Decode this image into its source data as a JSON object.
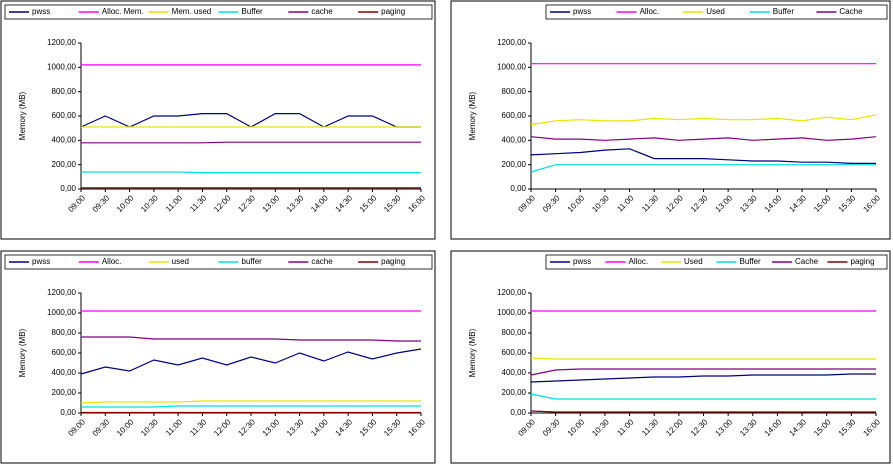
{
  "chart_data": [
    {
      "type": "line",
      "ylabel": "Memory (MB)",
      "categories": [
        "09:00",
        "09:30",
        "10:00",
        "10:30",
        "11:00",
        "11:30",
        "12:00",
        "12:30",
        "13:00",
        "13:30",
        "14:00",
        "14:30",
        "15:00",
        "15:30",
        "16:00"
      ],
      "ylim": [
        0,
        1200
      ],
      "yticks": [
        {
          "value": 0,
          "label": "0,00"
        },
        {
          "value": 200,
          "label": "200,00"
        },
        {
          "value": 400,
          "label": "400,00"
        },
        {
          "value": 600,
          "label": "600,00"
        },
        {
          "value": 800,
          "label": "800,00"
        },
        {
          "value": 1000,
          "label": "1000,00"
        },
        {
          "value": 1200,
          "label": "1200,00"
        }
      ],
      "grid": false,
      "series": [
        {
          "name": "pwss",
          "color": "#000080",
          "values": [
            510,
            600,
            510,
            600,
            600,
            620,
            620,
            510,
            620,
            620,
            510,
            600,
            600,
            510,
            510
          ]
        },
        {
          "name": "Alloc. Mem.",
          "color": "#ff00ff",
          "values": [
            1020,
            1020,
            1020,
            1020,
            1020,
            1020,
            1020,
            1020,
            1020,
            1020,
            1020,
            1020,
            1020,
            1020,
            1020
          ]
        },
        {
          "name": "Mem. used",
          "color": "#e6e600",
          "values": [
            510,
            510,
            510,
            510,
            510,
            510,
            510,
            510,
            510,
            510,
            510,
            510,
            510,
            510,
            510
          ]
        },
        {
          "name": "Buffer",
          "color": "#00e0e0",
          "values": [
            140,
            140,
            140,
            140,
            140,
            135,
            135,
            135,
            135,
            135,
            135,
            135,
            135,
            135,
            135
          ]
        },
        {
          "name": "cache",
          "color": "#800080",
          "values": [
            380,
            380,
            380,
            380,
            380,
            380,
            385,
            385,
            385,
            385,
            385,
            385,
            385,
            385,
            385
          ]
        },
        {
          "name": "paging",
          "color": "#800000",
          "values": [
            10,
            10,
            10,
            10,
            10,
            10,
            10,
            10,
            10,
            10,
            10,
            10,
            10,
            10,
            10
          ]
        }
      ]
    },
    {
      "type": "line",
      "ylabel": "Memory (MB)",
      "categories": [
        "09:00",
        "09:30",
        "10:00",
        "10:30",
        "11:00",
        "11:30",
        "12:00",
        "12:30",
        "13:00",
        "13:30",
        "14:00",
        "14:30",
        "15:00",
        "15:30",
        "16:00"
      ],
      "ylim": [
        0,
        1200
      ],
      "yticks": [
        {
          "value": 0,
          "label": "0,00"
        },
        {
          "value": 200,
          "label": "200,00"
        },
        {
          "value": 400,
          "label": "400,00"
        },
        {
          "value": 600,
          "label": "600,00"
        },
        {
          "value": 800,
          "label": "800,00"
        },
        {
          "value": 1000,
          "label": "1000,00"
        },
        {
          "value": 1200,
          "label": "1200,00"
        }
      ],
      "grid": false,
      "series": [
        {
          "name": "pwss",
          "color": "#000080",
          "values": [
            280,
            290,
            300,
            320,
            330,
            250,
            250,
            250,
            240,
            230,
            230,
            220,
            220,
            210,
            210
          ]
        },
        {
          "name": "Alloc.",
          "color": "#ff00ff",
          "values": [
            1030,
            1030,
            1030,
            1030,
            1030,
            1030,
            1030,
            1030,
            1030,
            1030,
            1030,
            1030,
            1030,
            1030,
            1030
          ]
        },
        {
          "name": "Used",
          "color": "#e6e600",
          "values": [
            530,
            560,
            570,
            560,
            560,
            580,
            570,
            580,
            570,
            570,
            580,
            560,
            590,
            570,
            610
          ]
        },
        {
          "name": "Buffer",
          "color": "#00e0e0",
          "values": [
            140,
            200,
            200,
            200,
            200,
            200,
            200,
            200,
            200,
            200,
            200,
            200,
            200,
            200,
            200
          ]
        },
        {
          "name": "Cache",
          "color": "#800080",
          "values": [
            430,
            410,
            410,
            400,
            410,
            420,
            400,
            410,
            420,
            400,
            410,
            420,
            400,
            410,
            430
          ]
        }
      ]
    },
    {
      "type": "line",
      "ylabel": "Memory (MB)",
      "categories": [
        "09:00",
        "09:30",
        "10:00",
        "10:30",
        "11:00",
        "11:30",
        "12:00",
        "12:30",
        "13:00",
        "13:30",
        "14:00",
        "14:30",
        "15:00",
        "15:30",
        "16:00"
      ],
      "ylim": [
        0,
        1200
      ],
      "yticks": [
        {
          "value": 0,
          "label": "0,00"
        },
        {
          "value": 200,
          "label": "200,00"
        },
        {
          "value": 400,
          "label": "400,00"
        },
        {
          "value": 600,
          "label": "600,00"
        },
        {
          "value": 800,
          "label": "800,00"
        },
        {
          "value": 1000,
          "label": "1000,00"
        },
        {
          "value": 1200,
          "label": "1200,00"
        }
      ],
      "grid": false,
      "series": [
        {
          "name": "pwss",
          "color": "#000080",
          "values": [
            390,
            460,
            420,
            530,
            480,
            550,
            480,
            560,
            500,
            600,
            520,
            610,
            540,
            600,
            640
          ]
        },
        {
          "name": "Alloc.",
          "color": "#ff00ff",
          "values": [
            1020,
            1020,
            1020,
            1020,
            1020,
            1020,
            1020,
            1020,
            1020,
            1020,
            1020,
            1020,
            1020,
            1020,
            1020
          ]
        },
        {
          "name": "used",
          "color": "#e6e600",
          "values": [
            100,
            110,
            110,
            110,
            110,
            120,
            120,
            120,
            120,
            120,
            120,
            120,
            120,
            120,
            120
          ]
        },
        {
          "name": "buffer",
          "color": "#00e0e0",
          "values": [
            60,
            60,
            60,
            60,
            70,
            70,
            70,
            70,
            70,
            70,
            70,
            70,
            70,
            70,
            70
          ]
        },
        {
          "name": "cache",
          "color": "#800080",
          "values": [
            760,
            760,
            760,
            740,
            740,
            740,
            740,
            740,
            740,
            730,
            730,
            730,
            730,
            720,
            720
          ]
        },
        {
          "name": "paging",
          "color": "#800000",
          "values": [
            5,
            5,
            5,
            5,
            5,
            5,
            5,
            5,
            5,
            5,
            5,
            5,
            5,
            5,
            5
          ]
        }
      ]
    },
    {
      "type": "line",
      "ylabel": "Memory (MB)",
      "categories": [
        "09:00",
        "09:30",
        "10:00",
        "10:30",
        "11:00",
        "11:30",
        "12:00",
        "12:30",
        "13:00",
        "13:30",
        "14:00",
        "14:30",
        "15:00",
        "15:30",
        "16:00"
      ],
      "ylim": [
        0,
        1200
      ],
      "yticks": [
        {
          "value": 0,
          "label": "0,00"
        },
        {
          "value": 200,
          "label": "200,00"
        },
        {
          "value": 400,
          "label": "400,00"
        },
        {
          "value": 600,
          "label": "600,00"
        },
        {
          "value": 800,
          "label": "800,00"
        },
        {
          "value": 1000,
          "label": "1000,00"
        },
        {
          "value": 1200,
          "label": "1200,00"
        }
      ],
      "grid": false,
      "series": [
        {
          "name": "pwss",
          "color": "#000080",
          "values": [
            310,
            320,
            330,
            340,
            350,
            360,
            360,
            370,
            370,
            380,
            380,
            380,
            380,
            390,
            390
          ]
        },
        {
          "name": "Alloc.",
          "color": "#ff00ff",
          "values": [
            1020,
            1020,
            1020,
            1020,
            1020,
            1020,
            1020,
            1020,
            1020,
            1020,
            1020,
            1020,
            1020,
            1020,
            1020
          ]
        },
        {
          "name": "Used",
          "color": "#e6e600",
          "values": [
            550,
            540,
            540,
            540,
            540,
            540,
            540,
            540,
            540,
            540,
            540,
            540,
            540,
            540,
            540
          ]
        },
        {
          "name": "Buffer",
          "color": "#00e0e0",
          "values": [
            190,
            140,
            140,
            140,
            140,
            140,
            140,
            140,
            140,
            140,
            140,
            140,
            140,
            140,
            140
          ]
        },
        {
          "name": "Cache",
          "color": "#800080",
          "values": [
            380,
            430,
            440,
            440,
            440,
            440,
            440,
            440,
            440,
            440,
            440,
            440,
            440,
            440,
            440
          ]
        },
        {
          "name": "paging",
          "color": "#800000",
          "values": [
            20,
            10,
            10,
            10,
            10,
            10,
            10,
            10,
            10,
            10,
            10,
            10,
            10,
            10,
            10
          ]
        }
      ]
    }
  ]
}
